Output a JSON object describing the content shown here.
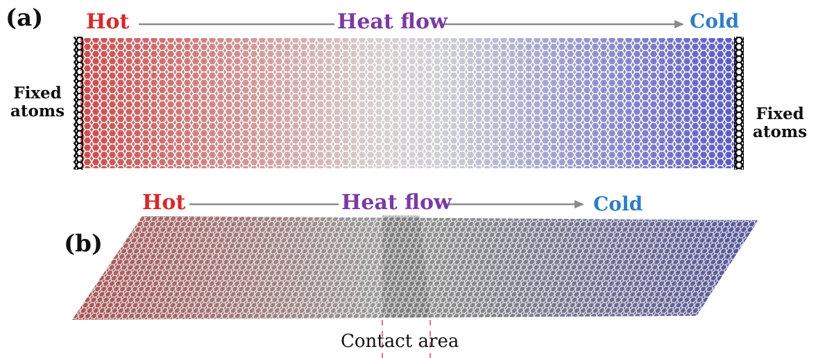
{
  "panel_a": {
    "label": "(a)",
    "hot": "Hot",
    "heat_flow": "Heat flow",
    "cold": "Cold",
    "fixed_left_line1": "Fixed",
    "fixed_left_line2": "atoms",
    "fixed_right_line1": "Fixed",
    "fixed_right_line2": "atoms"
  },
  "panel_b": {
    "label": "(b)",
    "hot": "Hot",
    "heat_flow": "Heat flow",
    "cold": "Cold",
    "contact_area": "Contact area"
  },
  "colors": {
    "hot": "#d62a2a",
    "cold": "#2f7fc4",
    "heat_flow": "#7a3aa2",
    "arrow": "#8a8a8a",
    "lattice_hot": "#cc4b4b",
    "lattice_mid": "#cfcfcf",
    "lattice_cold": "#5a5ac8"
  }
}
